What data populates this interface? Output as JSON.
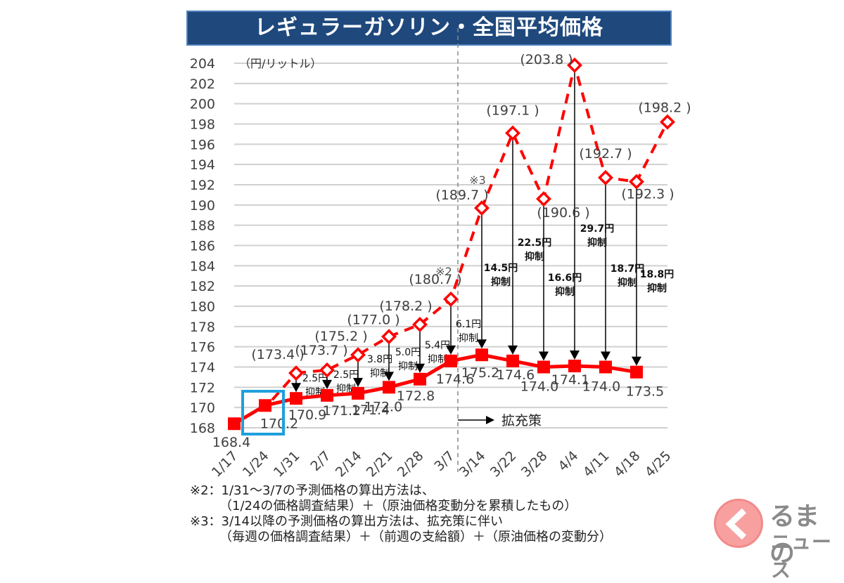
{
  "chart_data": {
    "type": "line",
    "title": "レギュラーガソリン・全国平均価格",
    "ylabel": "（円/リットル）",
    "xlabel": "",
    "ylim": [
      168,
      204
    ],
    "yticks": [
      168,
      170,
      172,
      174,
      176,
      178,
      180,
      182,
      184,
      186,
      188,
      190,
      192,
      194,
      196,
      198,
      200,
      202,
      204
    ],
    "grid": true,
    "categories": [
      "1/17",
      "1/24",
      "1/31",
      "2/7",
      "2/14",
      "2/21",
      "2/28",
      "3/7",
      "3/14",
      "3/22",
      "3/28",
      "4/4",
      "4/11",
      "4/18",
      "4/25"
    ],
    "series": [
      {
        "name": "actual",
        "style": "solid-square",
        "color": "#ff0000",
        "values": [
          168.4,
          170.2,
          170.9,
          171.2,
          171.4,
          172.0,
          172.8,
          174.6,
          175.2,
          174.6,
          174.0,
          174.1,
          174.0,
          173.5,
          null
        ],
        "labels": [
          "168.4",
          "170.2",
          "170.9",
          "171.2",
          "171.4",
          "172.0",
          "172.8",
          "174.6",
          "175.2",
          "174.6",
          "174.0",
          "174.1",
          "174.0",
          "173.5",
          ""
        ]
      },
      {
        "name": "predicted",
        "style": "dashed-diamond",
        "color": "#ff0000",
        "values": [
          null,
          null,
          173.4,
          173.7,
          175.2,
          177.0,
          178.2,
          180.7,
          189.7,
          197.1,
          190.6,
          203.8,
          192.7,
          192.3,
          198.2
        ],
        "labels": [
          "",
          "",
          "(173.4 )",
          "(173.7 )",
          "(175.2 )",
          "(177.0 )",
          "(178.2 )",
          "(180.7 )",
          "(189.7 )",
          "(197.1 )",
          "(190.6 )",
          "(203.8 )",
          "(192.7 )",
          "(192.3 )",
          "(198.2 )"
        ]
      }
    ],
    "suppression": [
      {
        "category": "1/31",
        "label1": "2.5円",
        "label2": "抑制"
      },
      {
        "category": "2/7",
        "label1": "2.5円",
        "label2": "抑制"
      },
      {
        "category": "2/14",
        "label1": "3.8円",
        "label2": "抑制"
      },
      {
        "category": "2/21",
        "label1": "5.0円",
        "label2": "抑制"
      },
      {
        "category": "2/28",
        "label1": "5.4円",
        "label2": "抑制"
      },
      {
        "category": "3/7",
        "label1": "6.1円",
        "label2": "抑制"
      },
      {
        "category": "3/14",
        "label1": "14.5円",
        "label2": "抑制"
      },
      {
        "category": "3/22",
        "label1": "22.5円",
        "label2": "抑制"
      },
      {
        "category": "3/28",
        "label1": "16.6円",
        "label2": "抑制"
      },
      {
        "category": "4/4",
        "label1": "29.7円",
        "label2": "抑制"
      },
      {
        "category": "4/11",
        "label1": "18.7円",
        "label2": "抑制"
      },
      {
        "category": "4/18",
        "label1": "18.8円",
        "label2": "抑制"
      }
    ],
    "annotations": {
      "note2_marker": "※2",
      "note3_marker": "※3",
      "expansion_label": "拡充策",
      "highlight_category": "1/24",
      "highlight_color": "#1ea0dc"
    }
  },
  "notes": [
    "※2：1/31～3/7の予測価格の算出方法は、",
    "（1/24の価格調査結果）＋（原油価格変動分を累積したもの）",
    "※3：3/14以降の予測価格の算出方法は、拡充策に伴い",
    "（毎週の価格調査結果）＋（前週の支給額）＋（原油価格の変動分）"
  ],
  "logo": {
    "line1": "るまの",
    "line2": "ニュース"
  }
}
